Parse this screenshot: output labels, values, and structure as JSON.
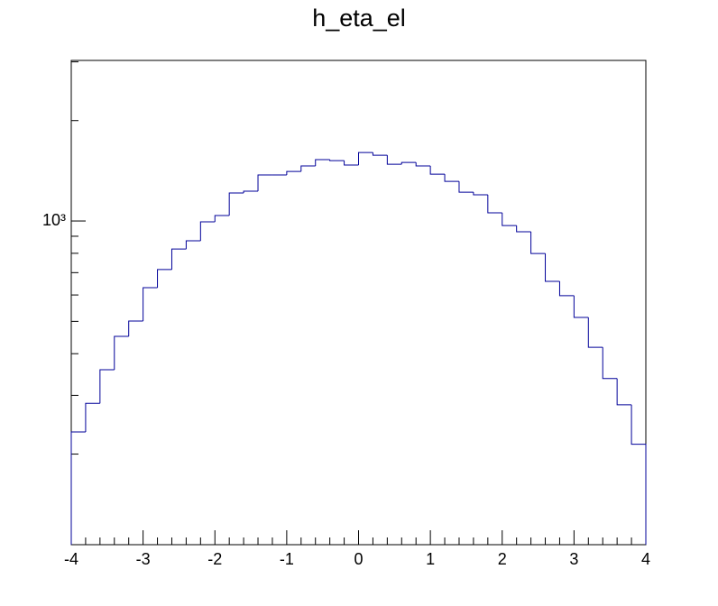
{
  "chart_data": {
    "type": "histogram",
    "title": "h_eta_el",
    "bins": [
      -4.0,
      -3.8,
      -3.6,
      -3.4,
      -3.2,
      -3.0,
      -2.8,
      -2.6,
      -2.4,
      -2.2,
      -2.0,
      -1.8,
      -1.6,
      -1.4,
      -1.2,
      -1.0,
      -0.8,
      -0.6,
      -0.4,
      -0.2,
      0.0,
      0.2,
      0.4,
      0.6,
      0.8,
      1.0,
      1.2,
      1.4,
      1.6,
      1.8,
      2.0,
      2.2,
      2.4,
      2.6,
      2.8,
      3.0,
      3.2,
      3.4,
      3.6,
      3.8,
      4.0
    ],
    "values": [
      233,
      284,
      358,
      451,
      501,
      631,
      715,
      824,
      872,
      994,
      1038,
      1213,
      1228,
      1374,
      1374,
      1408,
      1462,
      1527,
      1517,
      1471,
      1604,
      1575,
      1480,
      1498,
      1462,
      1382,
      1315,
      1220,
      1198,
      1058,
      969,
      928,
      799,
      659,
      597,
      514,
      418,
      337,
      281,
      214
    ],
    "color": "#000099",
    "xlim": [
      -4,
      4
    ],
    "xticks": [
      -4,
      -3,
      -2,
      -1,
      0,
      1,
      2,
      3,
      4
    ],
    "xminorticks": [
      -3.8,
      -3.6,
      -3.4,
      -3.2,
      -2.8,
      -2.6,
      -2.4,
      -2.2,
      -1.8,
      -1.6,
      -1.4,
      -1.2,
      -0.8,
      -0.6,
      -0.4,
      -0.2,
      0.2,
      0.4,
      0.6,
      0.8,
      1.2,
      1.4,
      1.6,
      1.8,
      2.2,
      2.4,
      2.6,
      2.8,
      3.2,
      3.4,
      3.6,
      3.8
    ],
    "ylim": [
      107,
      3030
    ],
    "ylog": true,
    "yticks": [
      {
        "value": 1000,
        "label": "10³"
      }
    ],
    "yminorticks": [
      200,
      300,
      400,
      500,
      600,
      700,
      800,
      900,
      2000,
      3000
    ]
  }
}
